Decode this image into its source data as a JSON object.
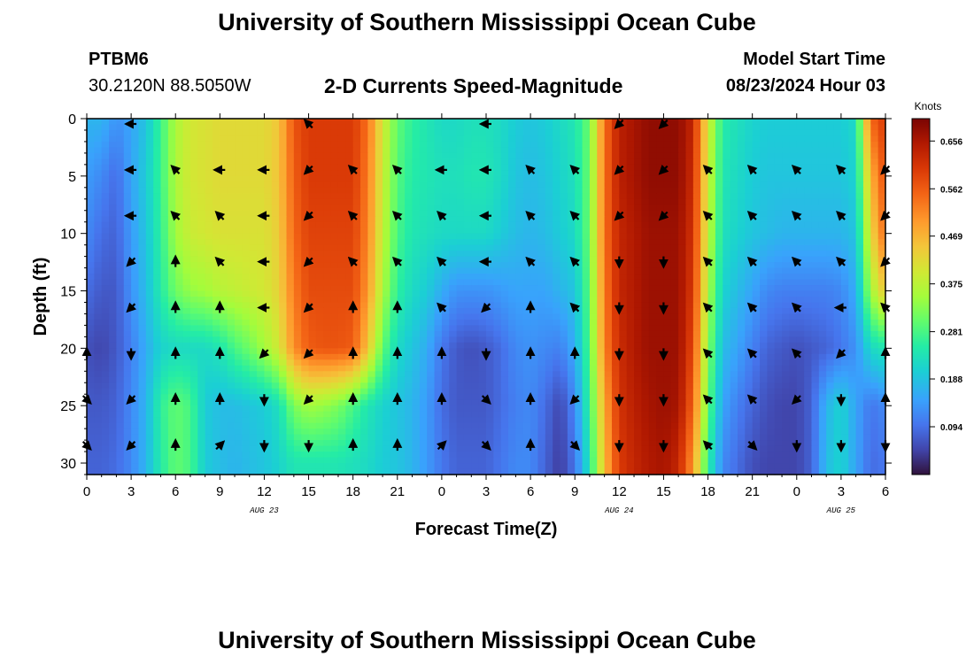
{
  "header": {
    "title": "University of Southern Mississippi Ocean Cube",
    "station_id": "PTBM6",
    "station_coords": "30.2120N  88.5050W",
    "model_start_label": "Model Start Time",
    "model_start_value": "08/23/2024 Hour 03"
  },
  "footer": {
    "title": "University of Southern Mississippi Ocean Cube"
  },
  "chart_data": {
    "type": "heatmap",
    "title": "2-D Currents Speed-Magnitude",
    "xlabel": "Forecast Time(Z)",
    "ylabel": "Depth (ft)",
    "x_range_hours": [
      0,
      54
    ],
    "y_range_ft": [
      0,
      31
    ],
    "x_ticks": [
      {
        "h": 0,
        "label": "0"
      },
      {
        "h": 3,
        "label": "3"
      },
      {
        "h": 6,
        "label": "6"
      },
      {
        "h": 9,
        "label": "9"
      },
      {
        "h": 12,
        "label": "12"
      },
      {
        "h": 15,
        "label": "15"
      },
      {
        "h": 18,
        "label": "18"
      },
      {
        "h": 21,
        "label": "21"
      },
      {
        "h": 24,
        "label": "0"
      },
      {
        "h": 27,
        "label": "3"
      },
      {
        "h": 30,
        "label": "6"
      },
      {
        "h": 33,
        "label": "9"
      },
      {
        "h": 36,
        "label": "12"
      },
      {
        "h": 39,
        "label": "15"
      },
      {
        "h": 42,
        "label": "18"
      },
      {
        "h": 45,
        "label": "21"
      },
      {
        "h": 48,
        "label": "0"
      },
      {
        "h": 51,
        "label": "3"
      },
      {
        "h": 54,
        "label": "6"
      }
    ],
    "date_labels": [
      {
        "h": 12,
        "label": "AUG 23"
      },
      {
        "h": 36,
        "label": "AUG 24"
      },
      {
        "h": 51,
        "label": "AUG 25"
      }
    ],
    "y_ticks": [
      0,
      5,
      10,
      15,
      20,
      25,
      30
    ],
    "colorbar": {
      "unit": "Knots",
      "min": 0.0,
      "max": 0.7,
      "ticks": [
        0.094,
        0.188,
        0.281,
        0.375,
        0.469,
        0.562,
        0.656
      ],
      "tick_labels": [
        "0.094",
        "0.188",
        "0.281",
        "0.375",
        "0.469",
        "0.562",
        "0.656"
      ]
    },
    "speed_by_depth_ft": [
      0,
      5,
      10,
      15,
      20,
      25,
      30
    ],
    "speed_time_hours": [
      0,
      1,
      2,
      3,
      4,
      5,
      6,
      7,
      8,
      9,
      10,
      11,
      12,
      13,
      14,
      15,
      16,
      17,
      18,
      19,
      20,
      21,
      22,
      23,
      24,
      25,
      26,
      27,
      28,
      29,
      30,
      31,
      32,
      33,
      34,
      35,
      36,
      37,
      38,
      39,
      40,
      41,
      42,
      43,
      44,
      45,
      46,
      47,
      48,
      49,
      50,
      51,
      52,
      53,
      54
    ],
    "speed_knots": [
      [
        0.17,
        0.17,
        0.13,
        0.15,
        0.19,
        0.27,
        0.36,
        0.4,
        0.41,
        0.42,
        0.42,
        0.42,
        0.42,
        0.45,
        0.57,
        0.6,
        0.6,
        0.6,
        0.6,
        0.54,
        0.4,
        0.3,
        0.26,
        0.24,
        0.22,
        0.22,
        0.23,
        0.23,
        0.22,
        0.2,
        0.19,
        0.2,
        0.22,
        0.24,
        0.31,
        0.54,
        0.64,
        0.66,
        0.68,
        0.68,
        0.68,
        0.63,
        0.4,
        0.25,
        0.23,
        0.21,
        0.2,
        0.2,
        0.2,
        0.2,
        0.2,
        0.2,
        0.22,
        0.55,
        0.6
      ],
      [
        0.14,
        0.12,
        0.09,
        0.15,
        0.2,
        0.27,
        0.36,
        0.4,
        0.41,
        0.42,
        0.42,
        0.42,
        0.42,
        0.45,
        0.56,
        0.6,
        0.6,
        0.6,
        0.6,
        0.53,
        0.39,
        0.29,
        0.25,
        0.24,
        0.23,
        0.23,
        0.24,
        0.24,
        0.22,
        0.19,
        0.18,
        0.19,
        0.21,
        0.23,
        0.31,
        0.54,
        0.64,
        0.66,
        0.68,
        0.68,
        0.68,
        0.62,
        0.39,
        0.24,
        0.22,
        0.2,
        0.19,
        0.19,
        0.19,
        0.19,
        0.19,
        0.19,
        0.21,
        0.47,
        0.58
      ],
      [
        0.12,
        0.09,
        0.08,
        0.14,
        0.19,
        0.26,
        0.35,
        0.39,
        0.4,
        0.41,
        0.41,
        0.41,
        0.41,
        0.44,
        0.55,
        0.59,
        0.59,
        0.59,
        0.59,
        0.52,
        0.38,
        0.28,
        0.24,
        0.23,
        0.22,
        0.22,
        0.22,
        0.22,
        0.2,
        0.18,
        0.17,
        0.18,
        0.2,
        0.22,
        0.31,
        0.54,
        0.63,
        0.65,
        0.67,
        0.67,
        0.67,
        0.61,
        0.38,
        0.23,
        0.21,
        0.19,
        0.18,
        0.17,
        0.17,
        0.17,
        0.17,
        0.17,
        0.19,
        0.42,
        0.55
      ],
      [
        0.09,
        0.07,
        0.07,
        0.13,
        0.18,
        0.25,
        0.31,
        0.34,
        0.35,
        0.37,
        0.38,
        0.39,
        0.4,
        0.43,
        0.53,
        0.58,
        0.58,
        0.58,
        0.58,
        0.5,
        0.36,
        0.26,
        0.22,
        0.2,
        0.16,
        0.13,
        0.13,
        0.13,
        0.14,
        0.15,
        0.15,
        0.15,
        0.17,
        0.19,
        0.3,
        0.53,
        0.63,
        0.65,
        0.67,
        0.67,
        0.67,
        0.6,
        0.36,
        0.21,
        0.18,
        0.15,
        0.12,
        0.11,
        0.11,
        0.11,
        0.11,
        0.12,
        0.16,
        0.35,
        0.45
      ],
      [
        0.06,
        0.05,
        0.07,
        0.11,
        0.16,
        0.21,
        0.22,
        0.22,
        0.22,
        0.24,
        0.28,
        0.31,
        0.35,
        0.4,
        0.51,
        0.56,
        0.57,
        0.57,
        0.56,
        0.45,
        0.3,
        0.22,
        0.19,
        0.16,
        0.1,
        0.07,
        0.06,
        0.07,
        0.09,
        0.12,
        0.13,
        0.12,
        0.11,
        0.16,
        0.29,
        0.52,
        0.62,
        0.65,
        0.67,
        0.67,
        0.67,
        0.58,
        0.33,
        0.18,
        0.15,
        0.11,
        0.08,
        0.07,
        0.06,
        0.07,
        0.08,
        0.1,
        0.13,
        0.22,
        0.24
      ],
      [
        0.07,
        0.07,
        0.08,
        0.12,
        0.17,
        0.26,
        0.3,
        0.28,
        0.2,
        0.18,
        0.18,
        0.19,
        0.2,
        0.23,
        0.32,
        0.35,
        0.34,
        0.32,
        0.28,
        0.24,
        0.21,
        0.19,
        0.17,
        0.14,
        0.09,
        0.07,
        0.07,
        0.07,
        0.09,
        0.11,
        0.12,
        0.09,
        0.05,
        0.12,
        0.27,
        0.48,
        0.61,
        0.64,
        0.66,
        0.67,
        0.66,
        0.55,
        0.3,
        0.15,
        0.11,
        0.08,
        0.06,
        0.05,
        0.05,
        0.08,
        0.17,
        0.21,
        0.15,
        0.1,
        0.12
      ],
      [
        0.08,
        0.08,
        0.09,
        0.12,
        0.17,
        0.25,
        0.3,
        0.28,
        0.2,
        0.18,
        0.17,
        0.18,
        0.19,
        0.21,
        0.24,
        0.24,
        0.24,
        0.24,
        0.23,
        0.22,
        0.2,
        0.19,
        0.17,
        0.14,
        0.1,
        0.08,
        0.08,
        0.08,
        0.1,
        0.12,
        0.12,
        0.08,
        0.04,
        0.1,
        0.24,
        0.46,
        0.6,
        0.63,
        0.65,
        0.66,
        0.63,
        0.5,
        0.26,
        0.12,
        0.09,
        0.06,
        0.05,
        0.05,
        0.05,
        0.08,
        0.18,
        0.21,
        0.15,
        0.09,
        0.1
      ]
    ],
    "vectors": [
      {
        "d": 0,
        "h": 3,
        "dir": "W"
      },
      {
        "d": 0,
        "h": 15,
        "dir": "NW"
      },
      {
        "d": 0,
        "h": 27,
        "dir": "W"
      },
      {
        "d": 0,
        "h": 36,
        "dir": "SW"
      },
      {
        "d": 0,
        "h": 39,
        "dir": "SW"
      },
      {
        "d": 4,
        "h": 3,
        "dir": "W"
      },
      {
        "d": 4,
        "h": 6,
        "dir": "NW"
      },
      {
        "d": 4,
        "h": 9,
        "dir": "W"
      },
      {
        "d": 4,
        "h": 12,
        "dir": "W"
      },
      {
        "d": 4,
        "h": 15,
        "dir": "SW"
      },
      {
        "d": 4,
        "h": 18,
        "dir": "NW"
      },
      {
        "d": 4,
        "h": 21,
        "dir": "NW"
      },
      {
        "d": 4,
        "h": 24,
        "dir": "W"
      },
      {
        "d": 4,
        "h": 27,
        "dir": "W"
      },
      {
        "d": 4,
        "h": 30,
        "dir": "NW"
      },
      {
        "d": 4,
        "h": 33,
        "dir": "NW"
      },
      {
        "d": 4,
        "h": 36,
        "dir": "SW"
      },
      {
        "d": 4,
        "h": 39,
        "dir": "SW"
      },
      {
        "d": 4,
        "h": 42,
        "dir": "NW"
      },
      {
        "d": 4,
        "h": 45,
        "dir": "NW"
      },
      {
        "d": 4,
        "h": 48,
        "dir": "NW"
      },
      {
        "d": 4,
        "h": 51,
        "dir": "NW"
      },
      {
        "d": 4,
        "h": 54,
        "dir": "SW"
      },
      {
        "d": 8,
        "h": 3,
        "dir": "W"
      },
      {
        "d": 8,
        "h": 6,
        "dir": "NW"
      },
      {
        "d": 8,
        "h": 9,
        "dir": "NW"
      },
      {
        "d": 8,
        "h": 12,
        "dir": "W"
      },
      {
        "d": 8,
        "h": 15,
        "dir": "SW"
      },
      {
        "d": 8,
        "h": 18,
        "dir": "NW"
      },
      {
        "d": 8,
        "h": 21,
        "dir": "NW"
      },
      {
        "d": 8,
        "h": 24,
        "dir": "NW"
      },
      {
        "d": 8,
        "h": 27,
        "dir": "W"
      },
      {
        "d": 8,
        "h": 30,
        "dir": "NW"
      },
      {
        "d": 8,
        "h": 33,
        "dir": "NW"
      },
      {
        "d": 8,
        "h": 36,
        "dir": "SW"
      },
      {
        "d": 8,
        "h": 39,
        "dir": "SW"
      },
      {
        "d": 8,
        "h": 42,
        "dir": "NW"
      },
      {
        "d": 8,
        "h": 45,
        "dir": "NW"
      },
      {
        "d": 8,
        "h": 48,
        "dir": "NW"
      },
      {
        "d": 8,
        "h": 51,
        "dir": "NW"
      },
      {
        "d": 8,
        "h": 54,
        "dir": "SW"
      },
      {
        "d": 12,
        "h": 3,
        "dir": "SW"
      },
      {
        "d": 12,
        "h": 6,
        "dir": "N"
      },
      {
        "d": 12,
        "h": 9,
        "dir": "NW"
      },
      {
        "d": 12,
        "h": 12,
        "dir": "W"
      },
      {
        "d": 12,
        "h": 15,
        "dir": "SW"
      },
      {
        "d": 12,
        "h": 18,
        "dir": "NW"
      },
      {
        "d": 12,
        "h": 21,
        "dir": "NW"
      },
      {
        "d": 12,
        "h": 24,
        "dir": "NW"
      },
      {
        "d": 12,
        "h": 27,
        "dir": "W"
      },
      {
        "d": 12,
        "h": 30,
        "dir": "NW"
      },
      {
        "d": 12,
        "h": 33,
        "dir": "NW"
      },
      {
        "d": 12,
        "h": 36,
        "dir": "S"
      },
      {
        "d": 12,
        "h": 39,
        "dir": "S"
      },
      {
        "d": 12,
        "h": 42,
        "dir": "NW"
      },
      {
        "d": 12,
        "h": 45,
        "dir": "NW"
      },
      {
        "d": 12,
        "h": 48,
        "dir": "NW"
      },
      {
        "d": 12,
        "h": 51,
        "dir": "NW"
      },
      {
        "d": 12,
        "h": 54,
        "dir": "SW"
      },
      {
        "d": 16,
        "h": 3,
        "dir": "SW"
      },
      {
        "d": 16,
        "h": 6,
        "dir": "N"
      },
      {
        "d": 16,
        "h": 9,
        "dir": "N"
      },
      {
        "d": 16,
        "h": 12,
        "dir": "W"
      },
      {
        "d": 16,
        "h": 15,
        "dir": "SW"
      },
      {
        "d": 16,
        "h": 18,
        "dir": "N"
      },
      {
        "d": 16,
        "h": 21,
        "dir": "N"
      },
      {
        "d": 16,
        "h": 24,
        "dir": "NW"
      },
      {
        "d": 16,
        "h": 27,
        "dir": "SW"
      },
      {
        "d": 16,
        "h": 30,
        "dir": "N"
      },
      {
        "d": 16,
        "h": 33,
        "dir": "NW"
      },
      {
        "d": 16,
        "h": 36,
        "dir": "S"
      },
      {
        "d": 16,
        "h": 39,
        "dir": "S"
      },
      {
        "d": 16,
        "h": 42,
        "dir": "NW"
      },
      {
        "d": 16,
        "h": 45,
        "dir": "NW"
      },
      {
        "d": 16,
        "h": 48,
        "dir": "NW"
      },
      {
        "d": 16,
        "h": 51,
        "dir": "W"
      },
      {
        "d": 16,
        "h": 54,
        "dir": "NW"
      },
      {
        "d": 20,
        "h": 0,
        "dir": "N"
      },
      {
        "d": 20,
        "h": 3,
        "dir": "S"
      },
      {
        "d": 20,
        "h": 6,
        "dir": "N"
      },
      {
        "d": 20,
        "h": 9,
        "dir": "N"
      },
      {
        "d": 20,
        "h": 12,
        "dir": "SW"
      },
      {
        "d": 20,
        "h": 15,
        "dir": "SW"
      },
      {
        "d": 20,
        "h": 18,
        "dir": "N"
      },
      {
        "d": 20,
        "h": 21,
        "dir": "N"
      },
      {
        "d": 20,
        "h": 24,
        "dir": "N"
      },
      {
        "d": 20,
        "h": 27,
        "dir": "S"
      },
      {
        "d": 20,
        "h": 30,
        "dir": "N"
      },
      {
        "d": 20,
        "h": 33,
        "dir": "N"
      },
      {
        "d": 20,
        "h": 36,
        "dir": "S"
      },
      {
        "d": 20,
        "h": 39,
        "dir": "S"
      },
      {
        "d": 20,
        "h": 42,
        "dir": "NW"
      },
      {
        "d": 20,
        "h": 45,
        "dir": "NW"
      },
      {
        "d": 20,
        "h": 48,
        "dir": "NW"
      },
      {
        "d": 20,
        "h": 51,
        "dir": "SW"
      },
      {
        "d": 20,
        "h": 54,
        "dir": "N"
      },
      {
        "d": 24,
        "h": 0,
        "dir": "SE"
      },
      {
        "d": 24,
        "h": 3,
        "dir": "SW"
      },
      {
        "d": 24,
        "h": 6,
        "dir": "N"
      },
      {
        "d": 24,
        "h": 9,
        "dir": "N"
      },
      {
        "d": 24,
        "h": 12,
        "dir": "S"
      },
      {
        "d": 24,
        "h": 15,
        "dir": "SW"
      },
      {
        "d": 24,
        "h": 18,
        "dir": "N"
      },
      {
        "d": 24,
        "h": 21,
        "dir": "N"
      },
      {
        "d": 24,
        "h": 24,
        "dir": "N"
      },
      {
        "d": 24,
        "h": 27,
        "dir": "SE"
      },
      {
        "d": 24,
        "h": 30,
        "dir": "N"
      },
      {
        "d": 24,
        "h": 33,
        "dir": "SW"
      },
      {
        "d": 24,
        "h": 36,
        "dir": "S"
      },
      {
        "d": 24,
        "h": 39,
        "dir": "S"
      },
      {
        "d": 24,
        "h": 42,
        "dir": "NW"
      },
      {
        "d": 24,
        "h": 45,
        "dir": "NW"
      },
      {
        "d": 24,
        "h": 48,
        "dir": "SW"
      },
      {
        "d": 24,
        "h": 51,
        "dir": "S"
      },
      {
        "d": 24,
        "h": 54,
        "dir": "N"
      },
      {
        "d": 28,
        "h": 0,
        "dir": "SE"
      },
      {
        "d": 28,
        "h": 3,
        "dir": "SW"
      },
      {
        "d": 28,
        "h": 6,
        "dir": "N"
      },
      {
        "d": 28,
        "h": 9,
        "dir": "NE"
      },
      {
        "d": 28,
        "h": 12,
        "dir": "S"
      },
      {
        "d": 28,
        "h": 15,
        "dir": "S"
      },
      {
        "d": 28,
        "h": 18,
        "dir": "N"
      },
      {
        "d": 28,
        "h": 21,
        "dir": "N"
      },
      {
        "d": 28,
        "h": 24,
        "dir": "NE"
      },
      {
        "d": 28,
        "h": 27,
        "dir": "SE"
      },
      {
        "d": 28,
        "h": 30,
        "dir": "N"
      },
      {
        "d": 28,
        "h": 33,
        "dir": "SE"
      },
      {
        "d": 28,
        "h": 36,
        "dir": "S"
      },
      {
        "d": 28,
        "h": 39,
        "dir": "S"
      },
      {
        "d": 28,
        "h": 42,
        "dir": "NW"
      },
      {
        "d": 28,
        "h": 45,
        "dir": "SE"
      },
      {
        "d": 28,
        "h": 48,
        "dir": "S"
      },
      {
        "d": 28,
        "h": 51,
        "dir": "S"
      },
      {
        "d": 28,
        "h": 54,
        "dir": "S"
      }
    ]
  }
}
